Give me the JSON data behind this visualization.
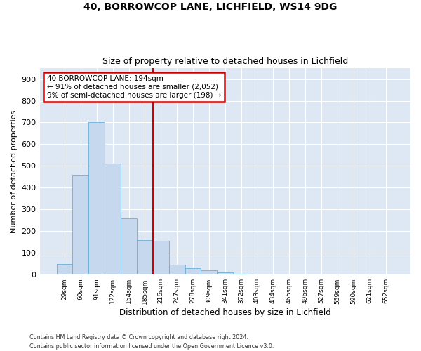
{
  "title1": "40, BORROWCOP LANE, LICHFIELD, WS14 9DG",
  "title2": "Size of property relative to detached houses in Lichfield",
  "xlabel": "Distribution of detached houses by size in Lichfield",
  "ylabel": "Number of detached properties",
  "footnote1": "Contains HM Land Registry data © Crown copyright and database right 2024.",
  "footnote2": "Contains public sector information licensed under the Open Government Licence v3.0.",
  "bin_labels": [
    "29sqm",
    "60sqm",
    "91sqm",
    "122sqm",
    "154sqm",
    "185sqm",
    "216sqm",
    "247sqm",
    "278sqm",
    "309sqm",
    "341sqm",
    "372sqm",
    "403sqm",
    "434sqm",
    "465sqm",
    "496sqm",
    "527sqm",
    "559sqm",
    "590sqm",
    "621sqm",
    "652sqm"
  ],
  "bar_values": [
    50,
    460,
    700,
    510,
    260,
    160,
    155,
    45,
    30,
    20,
    12,
    3,
    0,
    0,
    0,
    0,
    0,
    0,
    0,
    0,
    0
  ],
  "bar_color": "#c5d8ee",
  "bar_edge_color": "#6aaed6",
  "vline_x": 5.5,
  "vline_color": "#cc0000",
  "ann_line1": "40 BORROWCOP LANE: 194sqm",
  "ann_line2": "← 91% of detached houses are smaller (2,052)",
  "ann_line3": "9% of semi-detached houses are larger (198) →",
  "ann_box_edge": "#cc0000",
  "ylim": [
    0,
    950
  ],
  "yticks": [
    0,
    100,
    200,
    300,
    400,
    500,
    600,
    700,
    800,
    900
  ],
  "bg_color": "#dde8f4",
  "grid_color": "#ffffff"
}
